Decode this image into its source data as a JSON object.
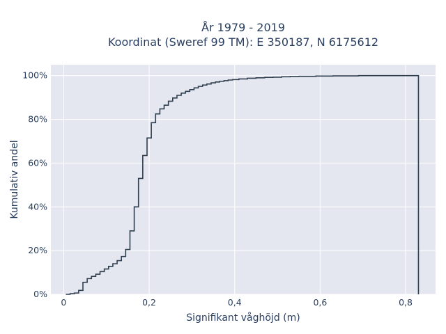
{
  "chart_data": {
    "type": "line",
    "title_line1": "År 1979 - 2019",
    "title_line2": "Koordinat (Sweref 99 TM): E 350187, N 6175612",
    "xlabel": "Signifikant våghöjd (m)",
    "ylabel": "Kumulativ andel",
    "xlim": [
      -0.03,
      0.87
    ],
    "ylim": [
      0,
      1.05
    ],
    "xticks": [
      {
        "value": 0,
        "label": "0"
      },
      {
        "value": 0.2,
        "label": "0,2"
      },
      {
        "value": 0.4,
        "label": "0,4"
      },
      {
        "value": 0.6,
        "label": "0,6"
      },
      {
        "value": 0.8,
        "label": "0,8"
      }
    ],
    "yticks": [
      {
        "value": 0,
        "label": "0%"
      },
      {
        "value": 0.2,
        "label": "20%"
      },
      {
        "value": 0.4,
        "label": "40%"
      },
      {
        "value": 0.6,
        "label": "60%"
      },
      {
        "value": 0.8,
        "label": "80%"
      },
      {
        "value": 1.0,
        "label": "100%"
      }
    ],
    "grid": true,
    "line_color": "#2f3e4e",
    "plot_bg": "#e5e7f0",
    "series": [
      {
        "x": [
          0.005,
          0.015,
          0.025,
          0.035,
          0.045,
          0.055,
          0.065,
          0.075,
          0.085,
          0.095,
          0.105,
          0.115,
          0.125,
          0.135,
          0.145,
          0.155,
          0.165,
          0.175,
          0.185,
          0.195,
          0.205,
          0.215,
          0.225,
          0.235,
          0.245,
          0.255,
          0.265,
          0.275,
          0.285,
          0.295,
          0.305,
          0.315,
          0.325,
          0.335,
          0.345,
          0.355,
          0.365,
          0.375,
          0.385,
          0.395,
          0.41,
          0.43,
          0.45,
          0.47,
          0.49,
          0.51,
          0.53,
          0.55,
          0.57,
          0.59,
          0.61,
          0.63,
          0.65,
          0.67,
          0.69,
          0.71,
          0.73,
          0.75,
          0.77,
          0.79,
          0.81,
          0.83,
          0.83
        ],
        "y": [
          0.0,
          0.003,
          0.006,
          0.018,
          0.055,
          0.072,
          0.082,
          0.092,
          0.104,
          0.116,
          0.128,
          0.14,
          0.154,
          0.173,
          0.205,
          0.29,
          0.4,
          0.53,
          0.635,
          0.715,
          0.785,
          0.825,
          0.848,
          0.865,
          0.883,
          0.898,
          0.91,
          0.92,
          0.928,
          0.936,
          0.944,
          0.951,
          0.957,
          0.962,
          0.967,
          0.971,
          0.974,
          0.977,
          0.98,
          0.982,
          0.985,
          0.988,
          0.99,
          0.992,
          0.993,
          0.995,
          0.996,
          0.997,
          0.997,
          0.998,
          0.998,
          0.999,
          0.999,
          0.999,
          1.0,
          1.0,
          1.0,
          1.0,
          1.0,
          1.0,
          1.0,
          1.0,
          0.0
        ]
      }
    ]
  }
}
